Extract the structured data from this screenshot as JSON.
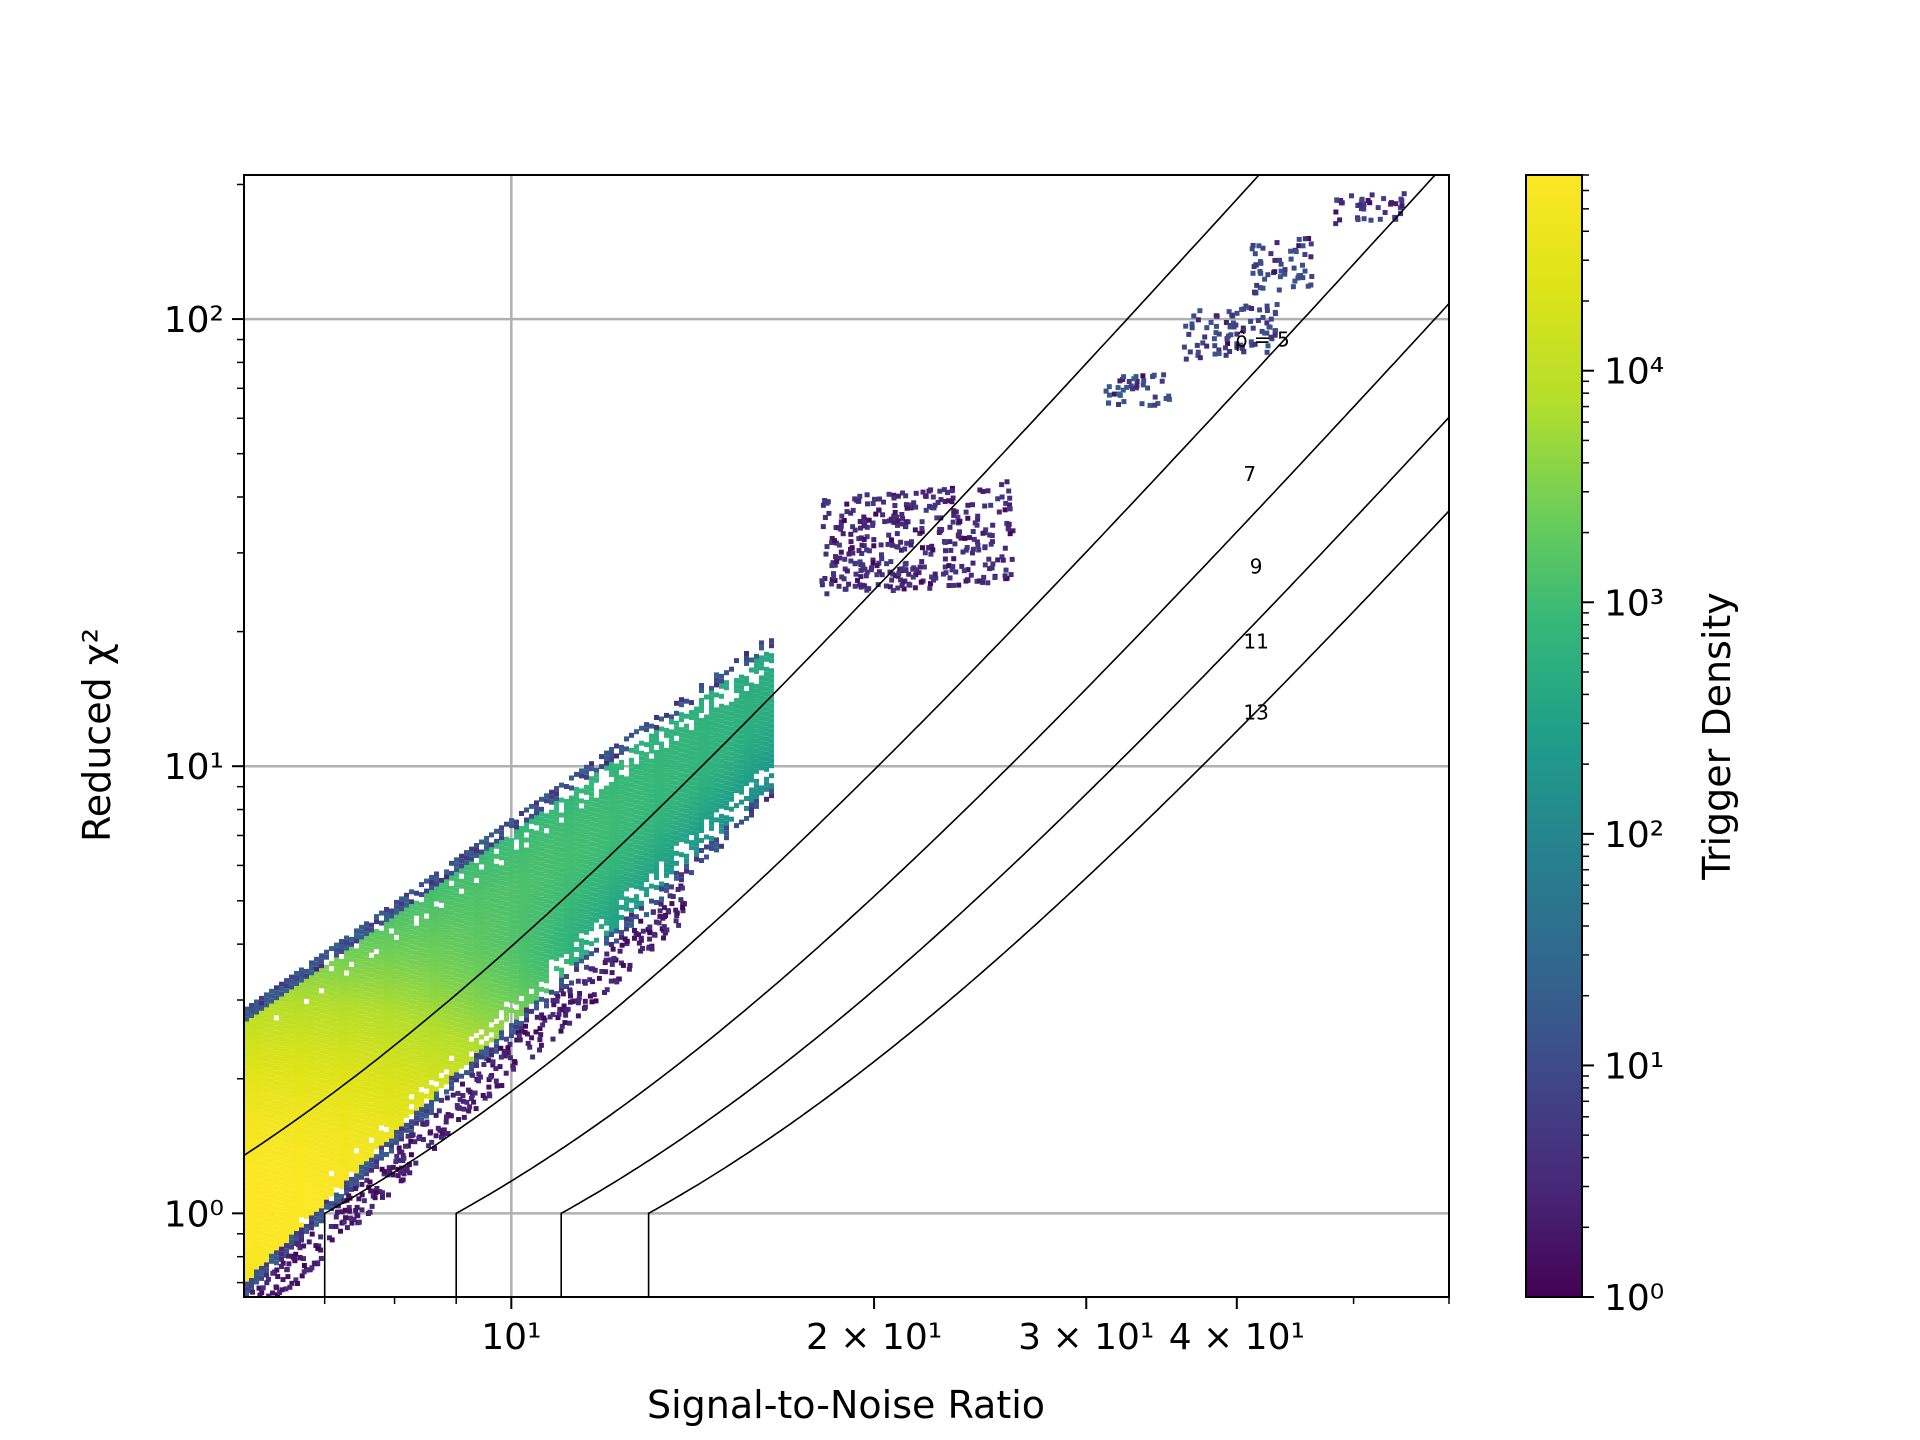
{
  "chart_data": {
    "type": "heatmap",
    "subtype": "hexbin",
    "xlabel": "Signal-to-Noise Ratio",
    "ylabel": "Reduced χ²",
    "colorbar_label": "Trigger Density",
    "x_scale": "log",
    "y_scale": "log",
    "xlim": [
      6.0,
      60.0
    ],
    "ylim": [
      0.65,
      210.0
    ],
    "x_ticks": [
      {
        "value": 10,
        "label": "10¹"
      },
      {
        "value": 20,
        "label": "2 × 10¹"
      },
      {
        "value": 30,
        "label": "3 × 10¹"
      },
      {
        "value": 40,
        "label": "4 × 10¹"
      }
    ],
    "y_ticks": [
      {
        "value": 1,
        "label": "10⁰"
      },
      {
        "value": 10,
        "label": "10¹"
      },
      {
        "value": 100,
        "label": "10²"
      }
    ],
    "colorbar_range": [
      1,
      70000
    ],
    "colorbar_ticks": [
      {
        "value": 1,
        "label": "10⁰"
      },
      {
        "value": 10,
        "label": "10¹"
      },
      {
        "value": 100,
        "label": "10²"
      },
      {
        "value": 1000,
        "label": "10³"
      },
      {
        "value": 10000,
        "label": "10⁴"
      }
    ],
    "colormap": "viridis",
    "grid": true,
    "contours": [
      {
        "label": "ρ̂ = 5",
        "rho": 5,
        "label_at": [
          42,
          90
        ]
      },
      {
        "label": "7",
        "rho": 7,
        "label_at": [
          41,
          45
        ]
      },
      {
        "label": "9",
        "rho": 9,
        "label_at": [
          41.5,
          28
        ]
      },
      {
        "label": "11",
        "rho": 11,
        "label_at": [
          41.5,
          19
        ]
      },
      {
        "label": "13",
        "rho": 13,
        "label_at": [
          41.5,
          13.2
        ]
      }
    ],
    "density_regions": [
      {
        "name": "main-band",
        "x_from": 6.0,
        "x_to": 16.0,
        "upper_chi2_at_snr6": 2.9,
        "upper_chi2_at_snr16": 19.0,
        "peak": {
          "x": 6.0,
          "y": 1.05,
          "density": 70000
        }
      },
      {
        "name": "loud-cluster-1",
        "x_from": 18.0,
        "x_to": 26.0,
        "y_from": 24.0,
        "y_to": 44.0,
        "density": 5
      },
      {
        "name": "loud-cluster-2",
        "x_from": 31.0,
        "x_to": 35.0,
        "y_from": 63.0,
        "y_to": 77.0,
        "density": 20
      },
      {
        "name": "loud-cluster-3",
        "x_from": 36.0,
        "x_to": 43.0,
        "y_from": 82.0,
        "y_to": 110.0,
        "density": 15
      },
      {
        "name": "loud-cluster-4",
        "x_from": 41.0,
        "x_to": 46.0,
        "y_from": 115.0,
        "y_to": 155.0,
        "density": 15
      },
      {
        "name": "loud-cluster-5",
        "x_from": 48.0,
        "x_to": 55.0,
        "y_from": 165.0,
        "y_to": 195.0,
        "density": 10
      }
    ]
  }
}
